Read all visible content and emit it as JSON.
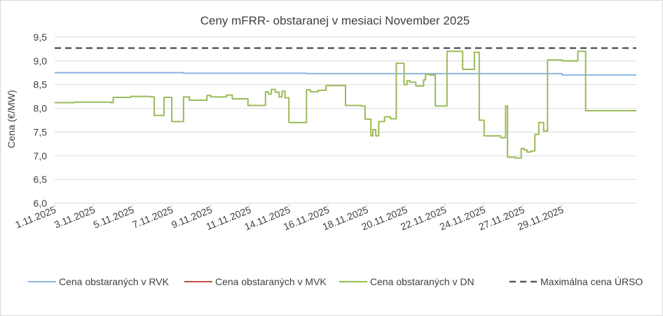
{
  "chart_data": {
    "type": "line",
    "title": "Ceny mFRR- obstaranej v mesiaci November 2025",
    "xlabel": "",
    "ylabel": "Cena (€/MW)",
    "ylim": [
      6.0,
      9.5
    ],
    "xlim": [
      1.0,
      30.8
    ],
    "grid": "horizontal",
    "legend_position": "bottom",
    "y_ticks": [
      "6,0",
      "6,5",
      "7,0",
      "7,5",
      "8,0",
      "8,5",
      "9,0",
      "9,5"
    ],
    "x_ticks": [
      {
        "x": 1,
        "label": "1.11.2025"
      },
      {
        "x": 3,
        "label": "3.11.2025"
      },
      {
        "x": 5,
        "label": "5.11.2025"
      },
      {
        "x": 7,
        "label": "7.11.2025"
      },
      {
        "x": 9,
        "label": "9.11.2025"
      },
      {
        "x": 11,
        "label": "11.11.2025"
      },
      {
        "x": 13,
        "label": "14.11.2025"
      },
      {
        "x": 15,
        "label": "16.11.2025"
      },
      {
        "x": 17,
        "label": "18.11.2025"
      },
      {
        "x": 19,
        "label": "20.11.2025"
      },
      {
        "x": 21,
        "label": "22.11.2025"
      },
      {
        "x": 23,
        "label": "24.11.2025"
      },
      {
        "x": 25,
        "label": "27.11.2025"
      },
      {
        "x": 27,
        "label": "29.11.2025"
      }
    ],
    "series": [
      {
        "name": "Cena obstaraných v RVK",
        "color": "#8db4e2",
        "style": "solid",
        "x": [
          1,
          7.6,
          7.6,
          13.9,
          13.9,
          27,
          27,
          30.8
        ],
        "y": [
          8.75,
          8.75,
          8.74,
          8.74,
          8.73,
          8.73,
          8.7,
          8.7
        ]
      },
      {
        "name": "Cena obstaraných v MVK",
        "color": "#c0504d",
        "style": "solid",
        "x": [],
        "y": []
      },
      {
        "name": "Cena obstaraných v DN",
        "color": "#9bbb59",
        "style": "solid",
        "x": [
          1,
          2,
          2,
          3.9,
          3.9,
          4,
          4,
          4.9,
          4.9,
          5.9,
          5.9,
          6.1,
          6.1,
          6.6,
          6.6,
          7,
          7,
          7.6,
          7.6,
          7.9,
          7.9,
          8.8,
          8.8,
          9,
          9,
          9.8,
          9.8,
          10.1,
          10.1,
          10.9,
          10.9,
          11.8,
          11.8,
          11.95,
          11.95,
          12.1,
          12.1,
          12.3,
          12.3,
          12.5,
          12.5,
          12.65,
          12.65,
          12.8,
          12.8,
          13,
          13,
          13.9,
          13.9,
          14.1,
          14.1,
          14.5,
          14.5,
          14.9,
          14.9,
          15.9,
          15.9,
          16.7,
          16.7,
          16.9,
          16.9,
          17.2,
          17.2,
          17.3,
          17.3,
          17.45,
          17.45,
          17.6,
          17.6,
          17.9,
          17.9,
          18.2,
          18.2,
          18.5,
          18.5,
          18.9,
          18.9,
          19.05,
          19.05,
          19.2,
          19.2,
          19.5,
          19.5,
          19.9,
          19.9,
          20,
          20,
          20.2,
          20.2,
          20.5,
          20.5,
          20.9,
          20.9,
          21.1,
          21.1,
          21.9,
          21.9,
          22.5,
          22.5,
          22.75,
          22.75,
          23,
          23,
          23.6,
          23.6,
          23.85,
          23.85,
          24.1,
          24.1,
          24.2,
          24.2,
          24.6,
          24.6,
          24.9,
          24.9,
          25.05,
          25.05,
          25.2,
          25.2,
          25.4,
          25.4,
          25.6,
          25.6,
          25.8,
          25.8,
          26.05,
          26.05,
          26.25,
          26.25,
          27,
          27,
          27.8,
          27.8,
          28,
          28,
          28.2,
          28.2,
          30.8
        ],
        "y": [
          8.12,
          8.12,
          8.13,
          8.13,
          8.12,
          8.12,
          8.23,
          8.23,
          8.25,
          8.25,
          8.24,
          8.24,
          7.85,
          7.85,
          8.23,
          8.23,
          7.72,
          7.72,
          8.24,
          8.24,
          8.17,
          8.17,
          8.27,
          8.27,
          8.24,
          8.24,
          8.28,
          8.28,
          8.2,
          8.2,
          8.06,
          8.06,
          8.35,
          8.35,
          8.3,
          8.3,
          8.4,
          8.4,
          8.34,
          8.34,
          8.24,
          8.24,
          8.36,
          8.36,
          8.22,
          8.22,
          7.7,
          7.7,
          8.39,
          8.39,
          8.35,
          8.35,
          8.38,
          8.38,
          8.48,
          8.48,
          8.06,
          8.06,
          8.05,
          8.05,
          7.77,
          7.77,
          7.42,
          7.42,
          7.55,
          7.55,
          7.42,
          7.42,
          7.72,
          7.72,
          7.82,
          7.82,
          7.78,
          7.78,
          8.95,
          8.95,
          8.5,
          8.5,
          8.58,
          8.58,
          8.55,
          8.55,
          8.47,
          8.47,
          8.6,
          8.6,
          8.72,
          8.72,
          8.7,
          8.7,
          8.05,
          8.05,
          8.05,
          8.05,
          9.2,
          9.2,
          8.82,
          8.82,
          9.18,
          9.18,
          7.75,
          7.75,
          7.42,
          7.42,
          7.42,
          7.42,
          7.38,
          7.38,
          8.05,
          8.05,
          6.97,
          6.97,
          6.95,
          6.95,
          7.15,
          7.15,
          7.12,
          7.12,
          7.08,
          7.08,
          7.1,
          7.1,
          7.45,
          7.45,
          7.7,
          7.7,
          7.52,
          7.52,
          9.02,
          9.02,
          9.0,
          9.0,
          9.2,
          9.2,
          9.2,
          9.2,
          7.95,
          7.95
        ]
      },
      {
        "name": "Maximálna cena ÚRSO",
        "color": "#595959",
        "style": "dashed",
        "x": [
          1,
          30.8
        ],
        "y": [
          9.27,
          9.27
        ]
      }
    ]
  }
}
